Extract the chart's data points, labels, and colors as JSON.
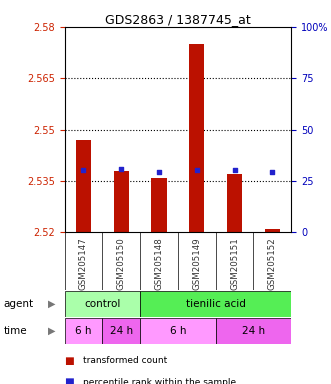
{
  "title": "GDS2863 / 1387745_at",
  "samples": [
    "GSM205147",
    "GSM205150",
    "GSM205148",
    "GSM205149",
    "GSM205151",
    "GSM205152"
  ],
  "bar_values": [
    2.547,
    2.538,
    2.536,
    2.575,
    2.537,
    2.521
  ],
  "bar_bottom": 2.52,
  "percentile_values": [
    2.5383,
    2.5385,
    2.5375,
    2.5383,
    2.5383,
    2.5375
  ],
  "ylim_left": [
    2.52,
    2.58
  ],
  "ylim_right": [
    0,
    100
  ],
  "yticks_left": [
    2.52,
    2.535,
    2.55,
    2.565,
    2.58
  ],
  "ytick_labels_left": [
    "2.52",
    "2.535",
    "2.55",
    "2.565",
    "2.58"
  ],
  "yticks_right": [
    0,
    25,
    50,
    75,
    100
  ],
  "ytick_labels_right": [
    "0",
    "25",
    "50",
    "75",
    "100%"
  ],
  "hline_values": [
    2.535,
    2.55,
    2.565
  ],
  "bar_color": "#BB1100",
  "percentile_color": "#2222CC",
  "agent_groups": [
    {
      "label": "control",
      "start": 0,
      "end": 2,
      "color": "#AAFFAA"
    },
    {
      "label": "tienilic acid",
      "start": 2,
      "end": 6,
      "color": "#55EE55"
    }
  ],
  "time_groups": [
    {
      "label": "6 h",
      "start": 0,
      "end": 1,
      "color": "#FF99FF"
    },
    {
      "label": "24 h",
      "start": 1,
      "end": 2,
      "color": "#EE66EE"
    },
    {
      "label": "6 h",
      "start": 2,
      "end": 4,
      "color": "#FF99FF"
    },
    {
      "label": "24 h",
      "start": 4,
      "end": 6,
      "color": "#EE66EE"
    }
  ],
  "left_color": "#CC2200",
  "right_color": "#0000BB",
  "title_fontsize": 9,
  "legend_items": [
    {
      "color": "#BB1100",
      "label": "transformed count"
    },
    {
      "color": "#2222CC",
      "label": "percentile rank within the sample"
    }
  ],
  "sample_label_color": "#333333",
  "plot_bg": "#E8E8E8"
}
